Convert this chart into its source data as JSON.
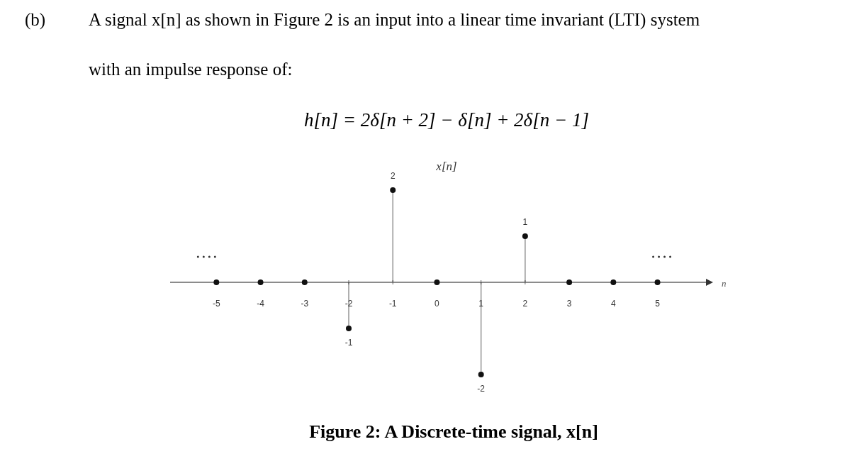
{
  "chart_data": {
    "type": "lollipop",
    "title": "Figure 2: A Discrete-time signal, x[n]",
    "xlabel": "n",
    "ylabel": "x[n]",
    "annotations": [
      "(b)",
      "A signal x[n] as shown in Figure 2 is an input into a linear time invariant (LTI) system",
      "with an impulse response of:",
      "h[n] = 2δ[n + 2] − δ[n] + 2δ[n − 1]"
    ],
    "x": [
      -5,
      -4,
      -3,
      -2,
      -1,
      0,
      1,
      2,
      3,
      4,
      5
    ],
    "values": [
      0,
      0,
      0,
      -1,
      2,
      0,
      -2,
      1,
      0,
      0,
      0
    ],
    "value_labels": [
      null,
      null,
      null,
      "-1",
      "2",
      null,
      "-2",
      "1",
      null,
      null,
      null
    ],
    "color": "#111111",
    "marker": "circle",
    "xlim": [
      -6.05,
      6.1
    ],
    "xticks": [
      -5,
      -4,
      -3,
      -2,
      -1,
      0,
      1,
      2,
      3,
      4,
      5
    ],
    "tick_labels": "x"
  }
}
